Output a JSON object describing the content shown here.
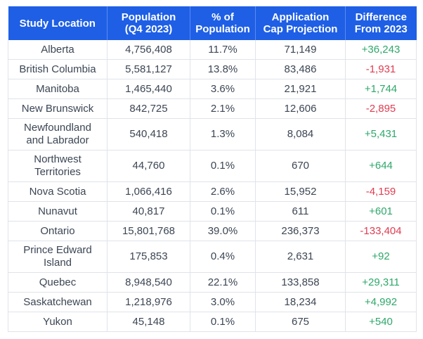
{
  "header": {
    "col1": [
      "Study Location"
    ],
    "col2": [
      "Population",
      "(Q4 2023)"
    ],
    "col3": [
      "% of",
      "Population"
    ],
    "col4": [
      "Application",
      "Cap Projection"
    ],
    "col5": [
      "Difference",
      "From 2023"
    ]
  },
  "colors": {
    "header_bg": "#1e5fe6",
    "positive": "#2ea86a",
    "negative": "#e03c52",
    "text": "#3c4654"
  },
  "rows": [
    {
      "location": [
        "Alberta"
      ],
      "population": "4,756,408",
      "percent": "11.7%",
      "cap": "71,149",
      "diff": "+36,243",
      "sign": "pos"
    },
    {
      "location": [
        "British Columbia"
      ],
      "population": "5,581,127",
      "percent": "13.8%",
      "cap": "83,486",
      "diff": "-1,931",
      "sign": "neg"
    },
    {
      "location": [
        "Manitoba"
      ],
      "population": "1,465,440",
      "percent": "3.6%",
      "cap": "21,921",
      "diff": "+1,744",
      "sign": "pos"
    },
    {
      "location": [
        "New Brunswick"
      ],
      "population": "842,725",
      "percent": "2.1%",
      "cap": "12,606",
      "diff": "-2,895",
      "sign": "neg"
    },
    {
      "location": [
        "Newfoundland",
        "and Labrador"
      ],
      "population": "540,418",
      "percent": "1.3%",
      "cap": "8,084",
      "diff": "+5,431",
      "sign": "pos"
    },
    {
      "location": [
        "Northwest",
        "Territories"
      ],
      "population": "44,760",
      "percent": "0.1%",
      "cap": "670",
      "diff": "+644",
      "sign": "pos"
    },
    {
      "location": [
        "Nova Scotia"
      ],
      "population": "1,066,416",
      "percent": "2.6%",
      "cap": "15,952",
      "diff": "-4,159",
      "sign": "neg"
    },
    {
      "location": [
        "Nunavut"
      ],
      "population": "40,817",
      "percent": "0.1%",
      "cap": "611",
      "diff": "+601",
      "sign": "pos"
    },
    {
      "location": [
        "Ontario"
      ],
      "population": "15,801,768",
      "percent": "39.0%",
      "cap": "236,373",
      "diff": "-133,404",
      "sign": "neg"
    },
    {
      "location": [
        "Prince Edward",
        "Island"
      ],
      "population": "175,853",
      "percent": "0.4%",
      "cap": "2,631",
      "diff": "+92",
      "sign": "pos"
    },
    {
      "location": [
        "Quebec"
      ],
      "population": "8,948,540",
      "percent": "22.1%",
      "cap": "133,858",
      "diff": "+29,311",
      "sign": "pos"
    },
    {
      "location": [
        "Saskatchewan"
      ],
      "population": "1,218,976",
      "percent": "3.0%",
      "cap": "18,234",
      "diff": "+4,992",
      "sign": "pos"
    },
    {
      "location": [
        "Yukon"
      ],
      "population": "45,148",
      "percent": "0.1%",
      "cap": "675",
      "diff": "+540",
      "sign": "pos"
    }
  ]
}
